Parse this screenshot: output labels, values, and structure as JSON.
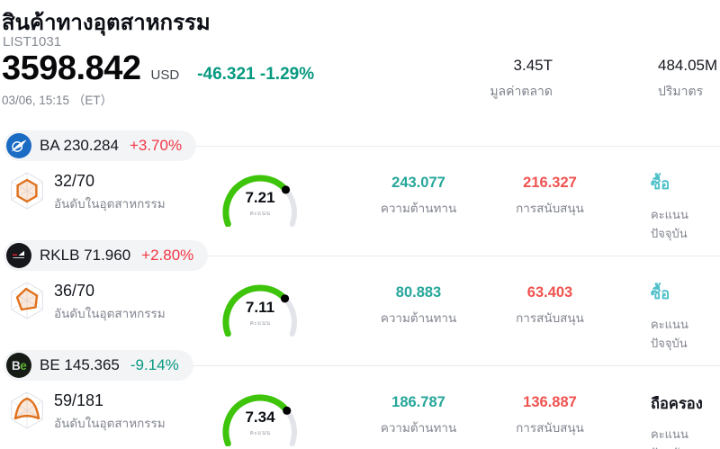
{
  "header": {
    "title": "สินค้าทางอุตสาหกรรม",
    "subtitle": "LIST1031",
    "price": "3598.842",
    "currency": "USD",
    "change": "-46.321 -1.29%",
    "change_color": "#089981",
    "datetime": "03/06, 15:15 （ET）",
    "stats": [
      {
        "value": "3.45T",
        "label": "มูลค่าตลาด"
      },
      {
        "value": "484.05M",
        "label": "ปริมาตร"
      }
    ]
  },
  "labels": {
    "rank": "อันดับในอุตสาหกรรม",
    "score": "คะแนน",
    "resistance": "ความต้านทาน",
    "support": "การสนับสนุน",
    "current_score": "คะแนนปัจจุบัน"
  },
  "colors": {
    "up": "#f23645",
    "down": "#089981",
    "resistance": "#26a69a",
    "support": "#ef5350",
    "gauge_green": "#3ec40a",
    "gauge_track": "#e2e4ea",
    "gauge_dot": "#000000"
  },
  "rows": [
    {
      "ticker": "BA",
      "price": "230.284",
      "change": "+3.70%",
      "change_color": "#f23645",
      "logo_icon": "boeing-logo",
      "rank": "32/70",
      "score": 7.21,
      "score_display": "7.21",
      "resistance": "243.077",
      "support": "216.327",
      "signal": "ซื้อ",
      "signal_color": "#4fc0ca"
    },
    {
      "ticker": "RKLB",
      "price": "71.960",
      "change": "+2.80%",
      "change_color": "#f23645",
      "logo_icon": "rocketlab-logo",
      "rank": "36/70",
      "score": 7.11,
      "score_display": "7.11",
      "resistance": "80.883",
      "support": "63.403",
      "signal": "ซื้อ",
      "signal_color": "#4fc0ca"
    },
    {
      "ticker": "BE",
      "price": "145.365",
      "change": "-9.14%",
      "change_color": "#089981",
      "logo_icon": "be-logo",
      "rank": "59/181",
      "score": 7.34,
      "score_display": "7.34",
      "resistance": "186.787",
      "support": "136.887",
      "signal": "ถือครอง",
      "signal_color": "#15181f"
    }
  ]
}
